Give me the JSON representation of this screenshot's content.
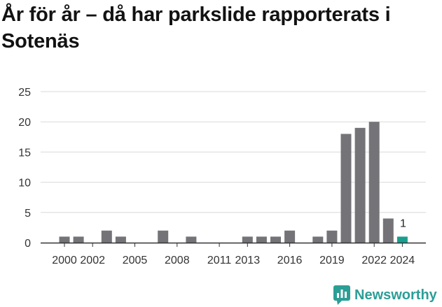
{
  "title": "År för år – då har parkslide rapporterats i Sotenäs",
  "brand": {
    "name": "Newsworthy",
    "color": "#2b9e96",
    "icon": "newsworthy-chart-bubble-icon"
  },
  "colors": {
    "bar": "#747378",
    "highlight": "#1a9e8f",
    "grid": "#d9d9d9",
    "axis": "#333333"
  },
  "chart_data": {
    "type": "bar",
    "title": "År för år – då har parkslide rapporterats i Sotenäs",
    "xlabel": "",
    "ylabel": "",
    "ylim": [
      0,
      25
    ],
    "yticks": [
      0,
      5,
      10,
      15,
      20,
      25
    ],
    "categories": [
      2000,
      2001,
      2002,
      2003,
      2004,
      2005,
      2006,
      2007,
      2008,
      2009,
      2010,
      2011,
      2012,
      2013,
      2014,
      2015,
      2016,
      2017,
      2018,
      2019,
      2020,
      2021,
      2022,
      2023,
      2024
    ],
    "values": [
      1,
      1,
      0,
      2,
      1,
      0,
      0,
      2,
      0,
      1,
      0,
      0,
      0,
      1,
      1,
      1,
      2,
      0,
      1,
      2,
      18,
      19,
      20,
      4,
      1
    ],
    "xtick_labels": [
      "2000",
      "2002",
      "2005",
      "2008",
      "2011",
      "2013",
      "2016",
      "2019",
      "2022",
      "2024"
    ],
    "highlight": {
      "category": 2024,
      "label": "1"
    },
    "grid": true,
    "legend": "none"
  }
}
